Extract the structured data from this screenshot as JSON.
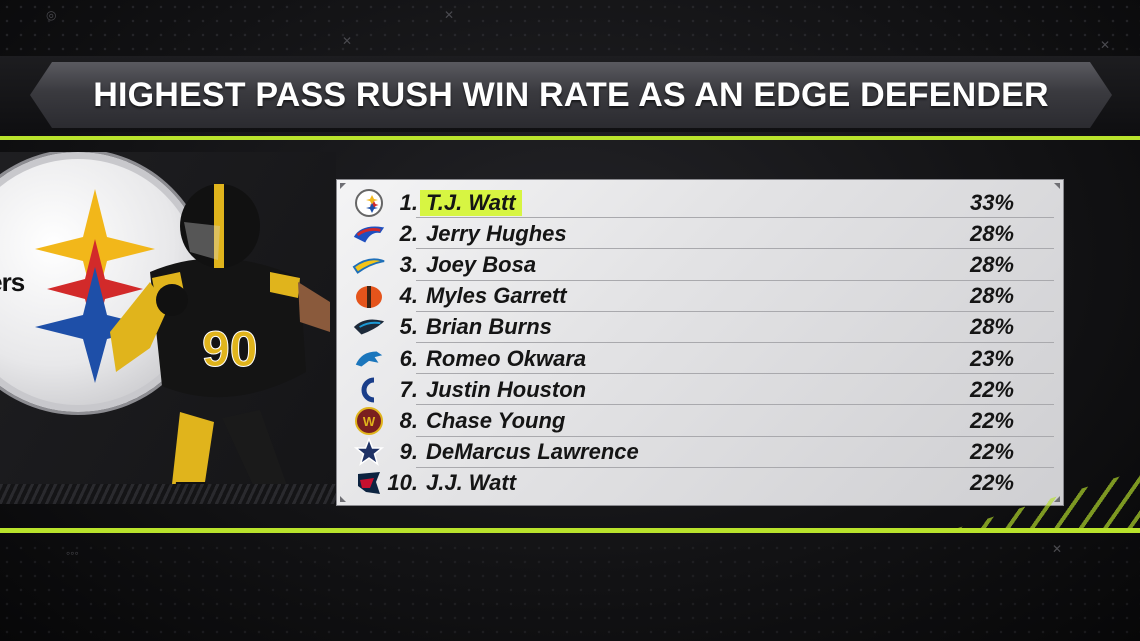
{
  "title": "HIGHEST PASS RUSH WIN RATE AS AN EDGE DEFENDER",
  "left_panel": {
    "logo_word": "eelers",
    "jersey_number": "90"
  },
  "colors": {
    "accent": "#b9e32c",
    "highlight": "#d7f542"
  },
  "rows": [
    {
      "rank": "1.",
      "name": "T.J. Watt",
      "pct": "33%",
      "logo": "steelers-logo-icon",
      "highlight": true
    },
    {
      "rank": "2.",
      "name": "Jerry Hughes",
      "pct": "28%",
      "logo": "bills-logo-icon"
    },
    {
      "rank": "3.",
      "name": "Joey Bosa",
      "pct": "28%",
      "logo": "chargers-logo-icon"
    },
    {
      "rank": "4.",
      "name": "Myles Garrett",
      "pct": "28%",
      "logo": "browns-logo-icon"
    },
    {
      "rank": "5.",
      "name": "Brian Burns",
      "pct": "28%",
      "logo": "panthers-logo-icon"
    },
    {
      "rank": "6.",
      "name": "Romeo Okwara",
      "pct": "23%",
      "logo": "lions-logo-icon"
    },
    {
      "rank": "7.",
      "name": "Justin Houston",
      "pct": "22%",
      "logo": "colts-logo-icon"
    },
    {
      "rank": "8.",
      "name": "Chase Young",
      "pct": "22%",
      "logo": "washington-logo-icon"
    },
    {
      "rank": "9.",
      "name": "DeMarcus Lawrence",
      "pct": "22%",
      "logo": "cowboys-logo-icon"
    },
    {
      "rank": "10.",
      "name": "J.J. Watt",
      "pct": "22%",
      "logo": "texans-logo-icon"
    }
  ]
}
